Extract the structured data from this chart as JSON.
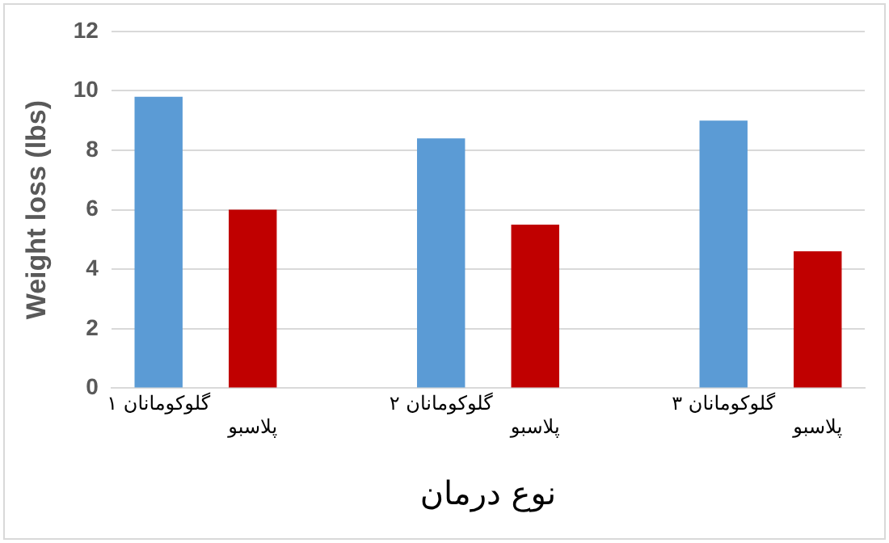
{
  "chart_data": {
    "type": "bar",
    "xlabel": "نوع درمان",
    "ylabel": "Weight loss (lbs)",
    "categories": [
      "گلوکومانان ۱",
      "پلاسبو",
      null,
      "گلوکومانان ۲",
      "پلاسبو",
      null,
      "گلوکومانان ۳",
      "پلاسبو"
    ],
    "values": [
      9.8,
      6.0,
      null,
      8.4,
      5.5,
      null,
      9.0,
      4.6
    ],
    "colors": [
      "#5b9bd5",
      "#c00000",
      "#5b9bd5",
      "#5b9bd5",
      "#c00000",
      "#5b9bd5",
      "#5b9bd5",
      "#c00000"
    ],
    "ylim": [
      0,
      12
    ],
    "yticks": [
      0,
      2,
      4,
      6,
      8,
      10,
      12
    ],
    "grid": "y",
    "legend": false
  }
}
